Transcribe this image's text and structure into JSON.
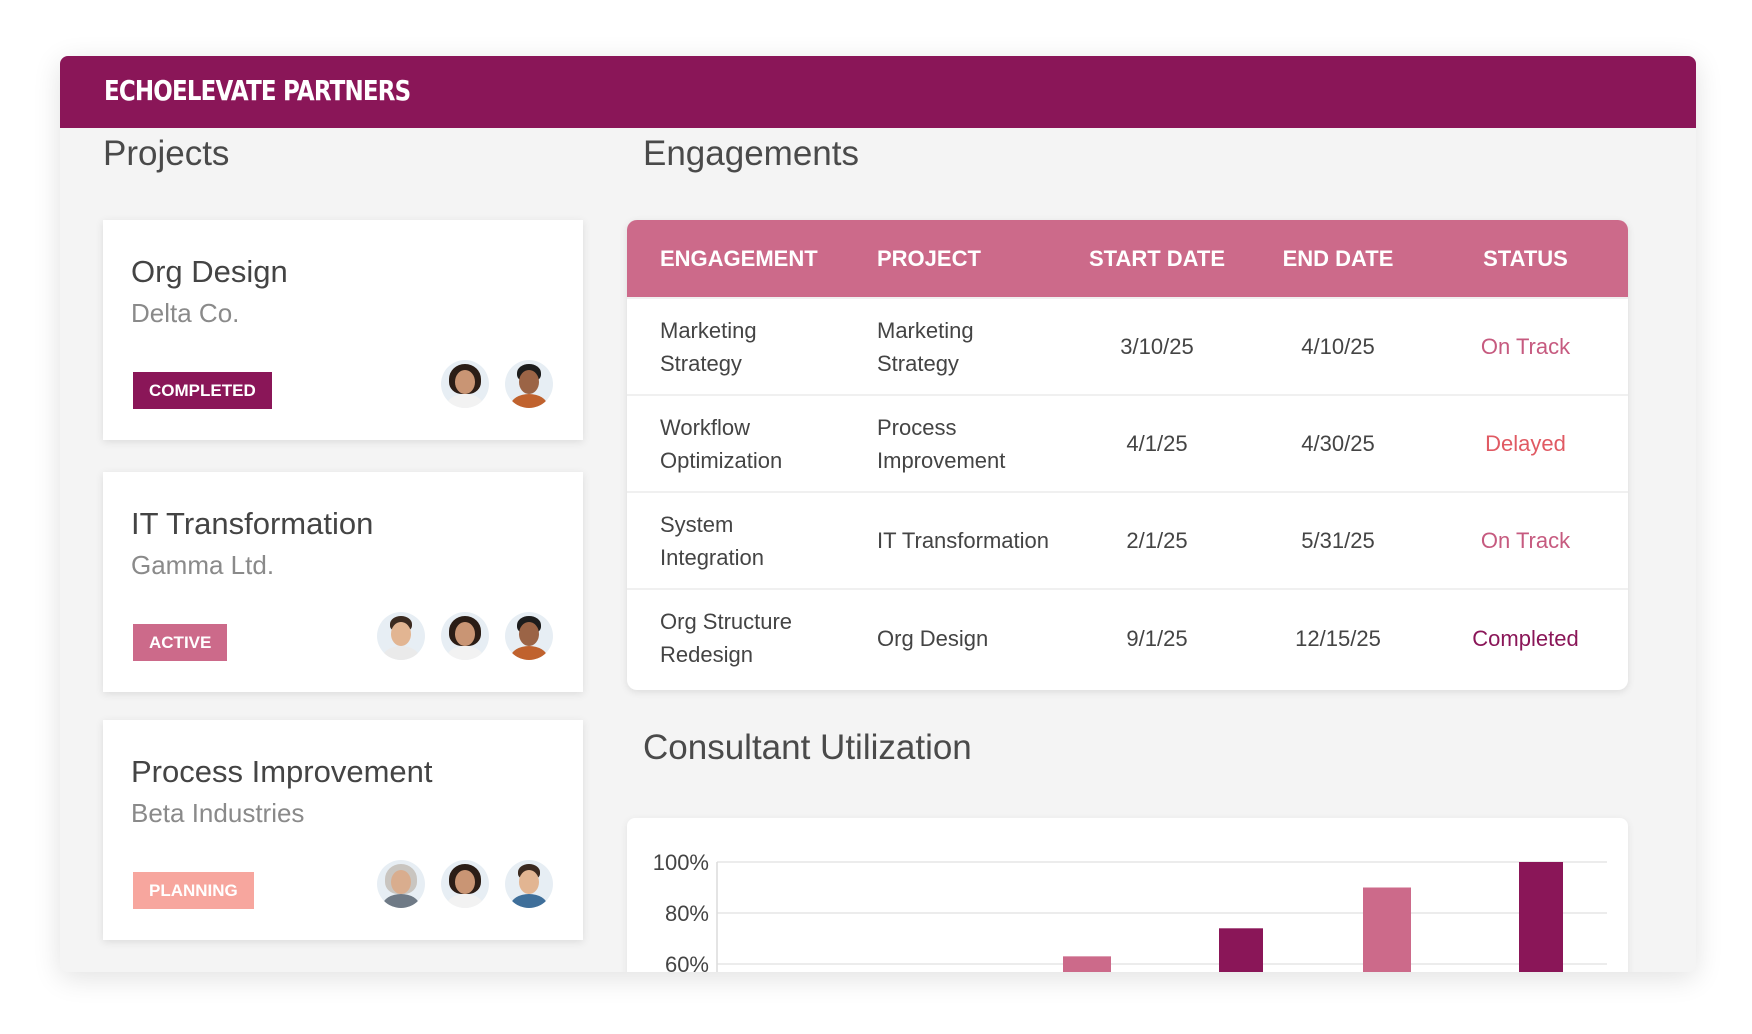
{
  "header": {
    "brand": "ECHOELEVATE PARTNERS"
  },
  "projects": {
    "title": "Projects",
    "cards": [
      {
        "name": "Org Design",
        "client": "Delta Co.",
        "status": "COMPLETED",
        "status_color": "#8a1658",
        "avatars": [
          "woman-portrait-avatar",
          "man-portrait-avatar"
        ]
      },
      {
        "name": "IT Transformation",
        "client": "Gamma Ltd.",
        "status": "ACTIVE",
        "status_color": "#cc6a8a",
        "avatars": [
          "man-portrait-avatar",
          "woman-portrait-avatar",
          "man-portrait-avatar"
        ]
      },
      {
        "name": "Process Improvement",
        "client": "Beta Industries",
        "status": "PLANNING",
        "status_color": "#f7a69e",
        "avatars": [
          "older-woman-portrait-avatar",
          "woman-portrait-avatar",
          "man-portrait-avatar"
        ]
      }
    ]
  },
  "engagements": {
    "title": "Engagements",
    "columns": [
      "ENGAGEMENT",
      "PROJECT",
      "START DATE",
      "END DATE",
      "STATUS"
    ],
    "rows": [
      {
        "engagement": [
          "Marketing",
          "Strategy"
        ],
        "project": [
          "Marketing",
          "Strategy"
        ],
        "start": "3/10/25",
        "end": "4/10/25",
        "status": "On Track"
      },
      {
        "engagement": [
          "Workflow",
          "Optimization"
        ],
        "project": [
          "Process",
          "Improvement"
        ],
        "start": "4/1/25",
        "end": "4/30/25",
        "status": "Delayed"
      },
      {
        "engagement": [
          "System",
          "Integration"
        ],
        "project": [
          "IT Transformation"
        ],
        "start": "2/1/25",
        "end": "5/31/25",
        "status": "On Track"
      },
      {
        "engagement": [
          "Org Structure",
          "Redesign"
        ],
        "project": [
          "Org Design"
        ],
        "start": "9/1/25",
        "end": "12/15/25",
        "status": "Completed"
      }
    ],
    "status_colors": {
      "On Track": "#c65a7f",
      "Delayed": "#e05a63",
      "Completed": "#8a1658"
    }
  },
  "utilization": {
    "title": "Consultant Utilization"
  },
  "chart_data": {
    "type": "bar",
    "title": "",
    "xlabel": "",
    "ylabel": "",
    "y_tick_labels": [
      "100%",
      "80%",
      "60%"
    ],
    "ylim_visible": [
      56,
      100
    ],
    "grid": true,
    "bars": [
      {
        "value": 63,
        "color": "#cc6a8a"
      },
      {
        "value": 74,
        "color": "#8a1658"
      },
      {
        "value": 90,
        "color": "#cc6a8a"
      },
      {
        "value": 100,
        "color": "#8a1658"
      }
    ]
  }
}
